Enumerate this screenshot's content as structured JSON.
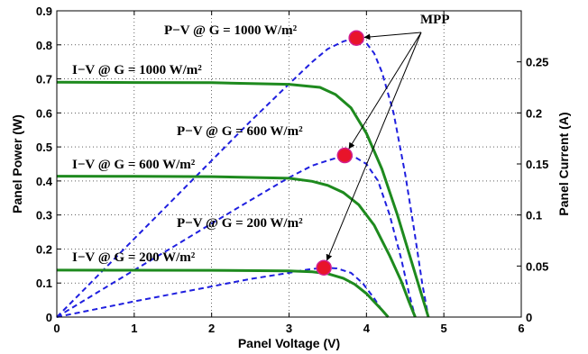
{
  "chart_data": {
    "type": "line",
    "xlabel": "Panel Voltage (V)",
    "ylabel_left": "Panel Power (W)",
    "ylabel_right": "Panel Current (A)",
    "xlim": [
      0,
      6
    ],
    "ylim_left": [
      0,
      0.9
    ],
    "ylim_right": [
      0,
      0.3
    ],
    "x_ticks": [
      "0",
      "1",
      "2",
      "3",
      "4",
      "5",
      "6"
    ],
    "y_left_ticks": [
      "0",
      "0.1",
      "0.2",
      "0.3",
      "0.4",
      "0.5",
      "0.6",
      "0.7",
      "0.8",
      "0.9"
    ],
    "y_right_ticks": [
      "0",
      "0.05",
      "0.1",
      "0.15",
      "0.2",
      "0.25"
    ],
    "grid": true,
    "colors": {
      "pv": "#1f1fdf",
      "iv": "#1e8a1e",
      "mpp_fill": "#e8142a",
      "mpp_edge": "#d21f8f"
    },
    "series": [
      {
        "name": "P–V @ G = 1000 W/m²",
        "kind": "pv",
        "axis": "left",
        "x": [
          0,
          0.5,
          1,
          1.5,
          2,
          2.5,
          3,
          3.3,
          3.5,
          3.7,
          3.85,
          4.0,
          4.1,
          4.2,
          4.35,
          4.5,
          4.62,
          4.72,
          4.8
        ],
        "y": [
          0,
          0.115,
          0.23,
          0.345,
          0.46,
          0.575,
          0.685,
          0.75,
          0.788,
          0.81,
          0.82,
          0.805,
          0.775,
          0.72,
          0.6,
          0.42,
          0.25,
          0.1,
          0
        ]
      },
      {
        "name": "P–V @ G = 600 W/m²",
        "kind": "pv",
        "axis": "left",
        "x": [
          0,
          0.5,
          1,
          1.5,
          2,
          2.5,
          3,
          3.3,
          3.5,
          3.72,
          3.85,
          4.0,
          4.15,
          4.3,
          4.45,
          4.55,
          4.63
        ],
        "y": [
          0,
          0.069,
          0.138,
          0.206,
          0.275,
          0.343,
          0.41,
          0.445,
          0.46,
          0.475,
          0.47,
          0.45,
          0.4,
          0.3,
          0.17,
          0.07,
          0
        ]
      },
      {
        "name": "P–V @ G = 200 W/m²",
        "kind": "pv",
        "axis": "left",
        "x": [
          0,
          0.5,
          1,
          1.5,
          2,
          2.5,
          3,
          3.25,
          3.45,
          3.62,
          3.8,
          3.95,
          4.1,
          4.2,
          4.28
        ],
        "y": [
          0,
          0.023,
          0.046,
          0.068,
          0.09,
          0.112,
          0.13,
          0.14,
          0.145,
          0.143,
          0.13,
          0.1,
          0.055,
          0.02,
          0
        ]
      },
      {
        "name": "I–V @ G = 1000 W/m²",
        "kind": "iv",
        "axis": "right",
        "x": [
          0,
          1,
          2,
          3,
          3.4,
          3.6,
          3.8,
          4.0,
          4.2,
          4.4,
          4.6,
          4.7,
          4.8
        ],
        "y": [
          0.23,
          0.2298,
          0.2296,
          0.228,
          0.225,
          0.218,
          0.205,
          0.18,
          0.145,
          0.1,
          0.05,
          0.025,
          0
        ]
      },
      {
        "name": "I–V @ G = 600 W/m²",
        "kind": "iv",
        "axis": "right",
        "x": [
          0,
          1,
          2,
          3,
          3.3,
          3.5,
          3.7,
          3.9,
          4.1,
          4.3,
          4.45,
          4.55,
          4.63
        ],
        "y": [
          0.138,
          0.1378,
          0.1376,
          0.136,
          0.133,
          0.129,
          0.122,
          0.11,
          0.09,
          0.06,
          0.035,
          0.015,
          0
        ]
      },
      {
        "name": "I–V @ G = 200 W/m²",
        "kind": "iv",
        "axis": "right",
        "x": [
          0,
          1,
          2,
          3,
          3.3,
          3.5,
          3.7,
          3.85,
          4.0,
          4.1,
          4.2,
          4.28
        ],
        "y": [
          0.046,
          0.0459,
          0.0458,
          0.0452,
          0.0444,
          0.0425,
          0.038,
          0.032,
          0.023,
          0.015,
          0.007,
          0
        ]
      }
    ],
    "mpp_points": [
      {
        "x": 3.87,
        "y": 0.82
      },
      {
        "x": 3.72,
        "y": 0.475
      },
      {
        "x": 3.45,
        "y": 0.145
      }
    ],
    "annotations": [
      {
        "id": "pv1000",
        "text": "P−V @ G = 1000 W/m²"
      },
      {
        "id": "iv1000",
        "text": "I−V @ G = 1000 W/m²"
      },
      {
        "id": "pv600",
        "text": "P−V @ G = 600 W/m²"
      },
      {
        "id": "iv600",
        "text": "I−V @ G = 600 W/m²"
      },
      {
        "id": "pv200",
        "text": "P−V @ G = 200 W/m²"
      },
      {
        "id": "iv200",
        "text": "I−V @ G = 200 W/m²"
      },
      {
        "id": "mpp",
        "text": "MPP"
      }
    ]
  }
}
